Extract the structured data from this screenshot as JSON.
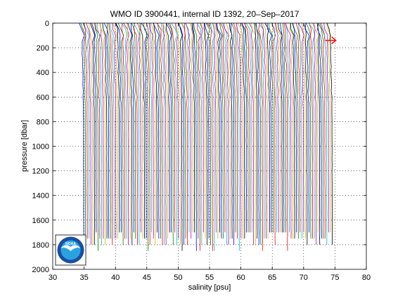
{
  "chart_data": {
    "type": "line",
    "title": "WMO ID 3900441, internal ID 1392, 20–Sep–2017",
    "xlabel": "salinity [psu]",
    "ylabel": "pressure [dbar]",
    "xlim": [
      30,
      80
    ],
    "ylim": [
      0,
      2000
    ],
    "y_reversed": true,
    "grid": true,
    "grid_style": "dotted",
    "xticks": [
      "30",
      "35",
      "40",
      "45",
      "50",
      "55",
      "60",
      "65",
      "70",
      "75",
      "80"
    ],
    "yticks": [
      "0",
      "200",
      "400",
      "600",
      "800",
      "1000",
      "1200",
      "1400",
      "1600",
      "1800",
      "2000"
    ],
    "series_colors": [
      "#0000ff",
      "#008000",
      "#ff0000",
      "#00bfbf",
      "#bf00bf",
      "#bfbf00",
      "#000000"
    ],
    "profiles": {
      "count": 140,
      "offset_start": 34.9,
      "offset_step": 0.285,
      "surface_salinity_offset": -0.6,
      "deep_salinity_offset": 0.05,
      "surface_pressure": 0,
      "max_pressure_range": [
        1700,
        1860
      ]
    },
    "marker": {
      "shape": "arrow",
      "color": "#ff0000",
      "salinity": 74.8,
      "pressure": 140
    }
  },
  "logo": {
    "text": "NOAA",
    "colors": {
      "outer": "#1a4fa0",
      "inner": "#29a3e0",
      "bird": "#ffffff"
    }
  }
}
